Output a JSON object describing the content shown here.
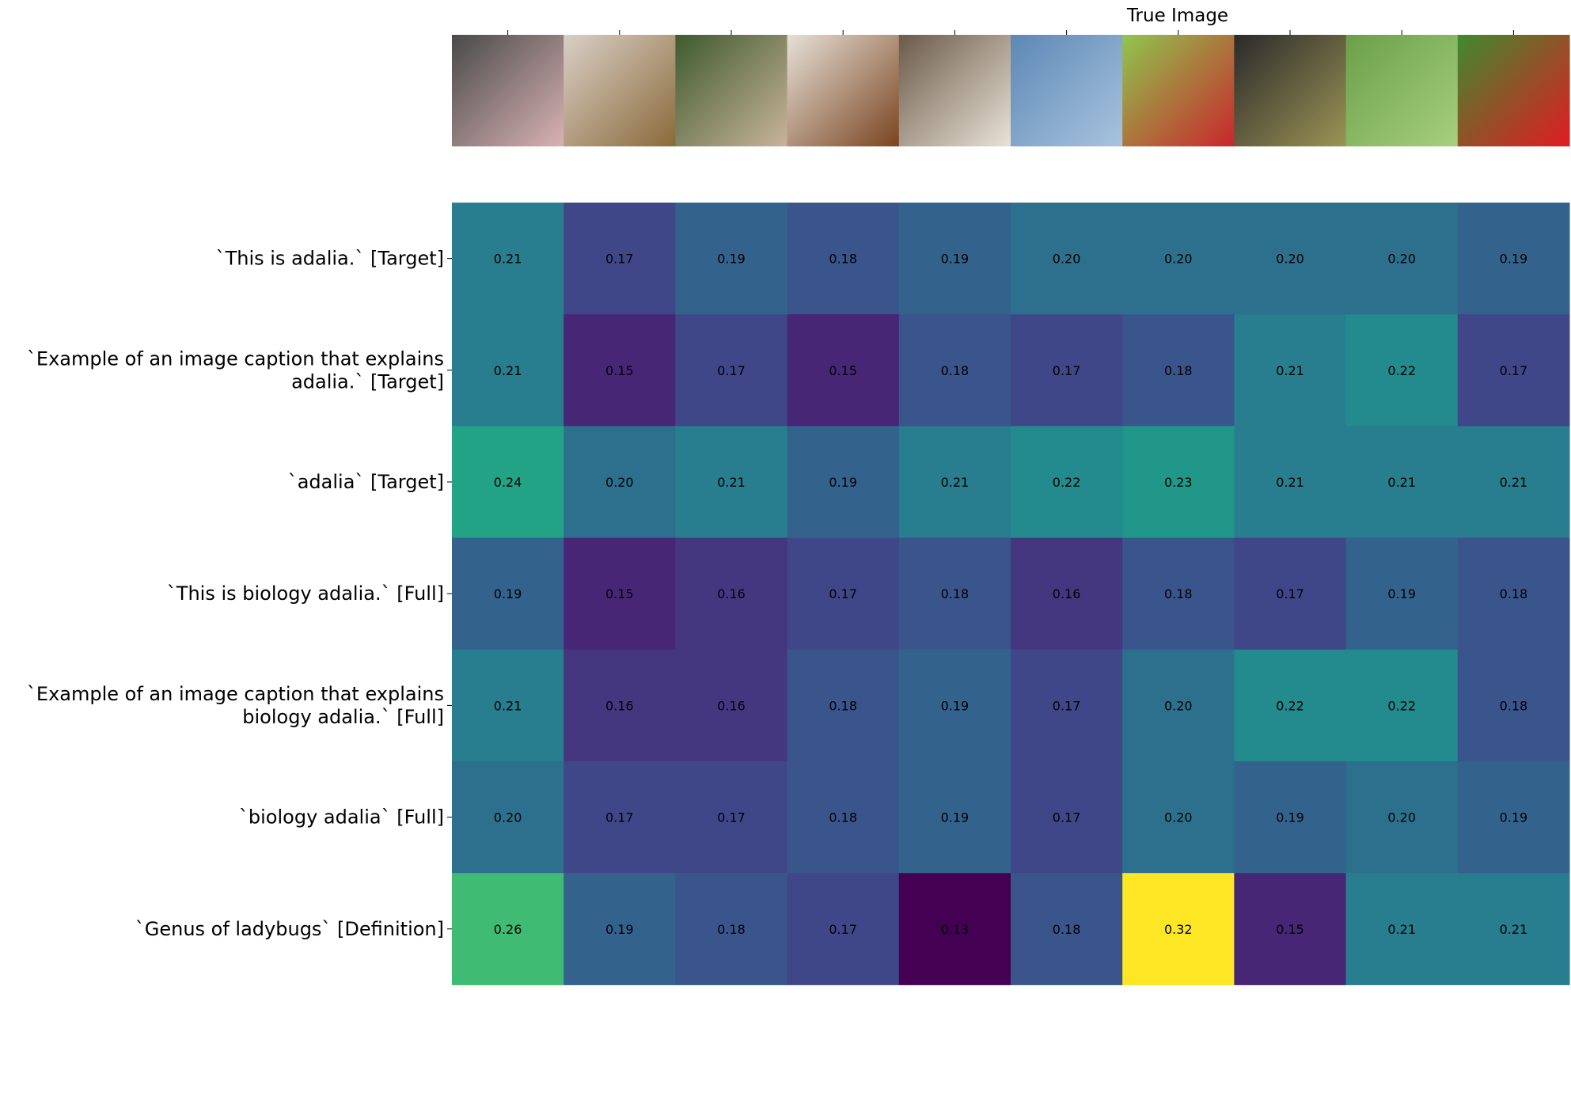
{
  "chart_data": {
    "type": "heatmap",
    "title": "",
    "xlabel": "",
    "ylabel": "",
    "column_header": "True Image",
    "columns": [
      {
        "icon": "needle-tip-photo-icon",
        "tint": [
          "#4a4a4a",
          "#d9b2b3"
        ]
      },
      {
        "icon": "dragonfly-photo-icon",
        "tint": [
          "#d9cfc6",
          "#8a6a3a"
        ]
      },
      {
        "icon": "calico-cat-photo-icon",
        "tint": [
          "#3f5a2e",
          "#c9b49a"
        ]
      },
      {
        "icon": "crab-photo-icon",
        "tint": [
          "#e6e0d6",
          "#7a4420"
        ]
      },
      {
        "icon": "sheep-photo-icon",
        "tint": [
          "#6b5a4a",
          "#e9e3d6"
        ]
      },
      {
        "icon": "city-collage-photo-icon",
        "tint": [
          "#5d87b5",
          "#a8c4de"
        ]
      },
      {
        "icon": "ladybug-leaf-photo-icon",
        "tint": [
          "#8fc64f",
          "#c9262c"
        ]
      },
      {
        "icon": "animal-in-cage-photo-icon",
        "tint": [
          "#2a2a2a",
          "#9c9455"
        ]
      },
      {
        "icon": "shrub-photo-icon",
        "tint": [
          "#6aa048",
          "#a7cf7f"
        ]
      },
      {
        "icon": "hibiscus-photo-icon",
        "tint": [
          "#3f8a2e",
          "#e11b22"
        ]
      }
    ],
    "rows": [
      [
        "`This is adalia.` [Target]"
      ],
      [
        "`Example of an image caption that explains",
        "adalia.` [Target]"
      ],
      [
        "`adalia` [Target]"
      ],
      [
        "`This is biology adalia.` [Full]"
      ],
      [
        "`Example of an image caption that explains",
        "biology adalia.` [Full]"
      ],
      [
        "`biology adalia` [Full]"
      ],
      [
        "`Genus of ladybugs` [Definition]"
      ]
    ],
    "values": [
      [
        0.21,
        0.17,
        0.19,
        0.18,
        0.19,
        0.2,
        0.2,
        0.2,
        0.2,
        0.19
      ],
      [
        0.21,
        0.15,
        0.17,
        0.15,
        0.18,
        0.17,
        0.18,
        0.21,
        0.22,
        0.17
      ],
      [
        0.24,
        0.2,
        0.21,
        0.19,
        0.21,
        0.22,
        0.23,
        0.21,
        0.21,
        0.21
      ],
      [
        0.19,
        0.15,
        0.16,
        0.17,
        0.18,
        0.16,
        0.18,
        0.17,
        0.19,
        0.18
      ],
      [
        0.21,
        0.16,
        0.16,
        0.18,
        0.19,
        0.17,
        0.2,
        0.22,
        0.22,
        0.18
      ],
      [
        0.2,
        0.17,
        0.17,
        0.18,
        0.19,
        0.17,
        0.2,
        0.19,
        0.2,
        0.19
      ],
      [
        0.26,
        0.19,
        0.18,
        0.17,
        0.13,
        0.18,
        0.32,
        0.15,
        0.21,
        0.21
      ]
    ],
    "value_format": "0.00",
    "color_range": [
      0.13,
      0.32
    ],
    "colormap": "viridis",
    "colorbar": false,
    "grid": false
  }
}
